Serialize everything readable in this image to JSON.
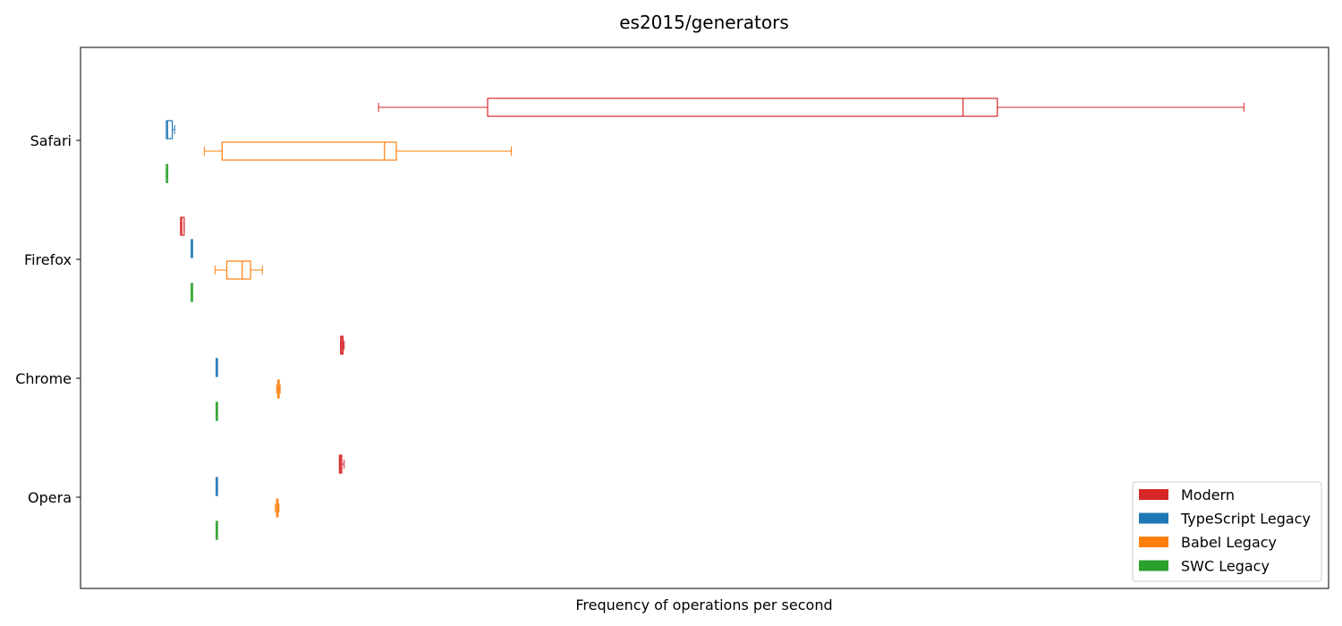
{
  "chart_data": {
    "type": "boxplot",
    "orientation": "horizontal",
    "title": "es2015/generators",
    "xlabel": "Frequency of operations per second",
    "ylabel": "",
    "x_ticks_shown": false,
    "xlim": [
      0,
      1000
    ],
    "grid": false,
    "legend_position": "bottom-right",
    "categories": [
      "Safari",
      "Firefox",
      "Chrome",
      "Opera"
    ],
    "series": [
      {
        "name": "Modern",
        "color": "#d62728",
        "boxes": [
          {
            "category": "Safari",
            "whisker_low": 225,
            "q1": 317,
            "median": 718,
            "q3": 747,
            "whisker_high": 955
          },
          {
            "category": "Firefox",
            "whisker_low": 58,
            "q1": 58,
            "median": 59,
            "q3": 61,
            "whisker_high": 61
          },
          {
            "category": "Chrome",
            "whisker_low": 193,
            "q1": 193,
            "median": 194,
            "q3": 195,
            "whisker_high": 196
          },
          {
            "category": "Opera",
            "whisker_low": 192,
            "q1": 192,
            "median": 193,
            "q3": 194,
            "whisker_high": 196
          }
        ]
      },
      {
        "name": "TypeScript Legacy",
        "color": "#1f77b4",
        "boxes": [
          {
            "category": "Safari",
            "whisker_low": 46,
            "q1": 46,
            "median": 47,
            "q3": 51,
            "whisker_high": 53
          },
          {
            "category": "Firefox",
            "whisker_low": 67,
            "q1": 67,
            "median": 67,
            "q3": 67,
            "whisker_high": 67
          },
          {
            "category": "Chrome",
            "whisker_low": 88,
            "q1": 88,
            "median": 88,
            "q3": 88,
            "whisker_high": 88
          },
          {
            "category": "Opera",
            "whisker_low": 88,
            "q1": 88,
            "median": 88,
            "q3": 88,
            "whisker_high": 88
          }
        ]
      },
      {
        "name": "Babel Legacy",
        "color": "#ff7f0e",
        "boxes": [
          {
            "category": "Safari",
            "whisker_low": 78,
            "q1": 93,
            "median": 230,
            "q3": 240,
            "whisker_high": 337
          },
          {
            "category": "Firefox",
            "whisker_low": 87,
            "q1": 97,
            "median": 110,
            "q3": 117,
            "whisker_high": 127
          },
          {
            "category": "Chrome",
            "whisker_low": 139,
            "q1": 140,
            "median": 141,
            "q3": 141,
            "whisker_high": 142
          },
          {
            "category": "Opera",
            "whisker_low": 138,
            "q1": 139,
            "median": 140,
            "q3": 140,
            "whisker_high": 141
          }
        ]
      },
      {
        "name": "SWC Legacy",
        "color": "#2ca02c",
        "boxes": [
          {
            "category": "Safari",
            "whisker_low": 46,
            "q1": 46,
            "median": 46,
            "q3": 47,
            "whisker_high": 47
          },
          {
            "category": "Firefox",
            "whisker_low": 67,
            "q1": 67,
            "median": 67,
            "q3": 67,
            "whisker_high": 67
          },
          {
            "category": "Chrome",
            "whisker_low": 88,
            "q1": 88,
            "median": 88,
            "q3": 88,
            "whisker_high": 88
          },
          {
            "category": "Opera",
            "whisker_low": 88,
            "q1": 88,
            "median": 88,
            "q3": 88,
            "whisker_high": 88
          }
        ]
      }
    ]
  }
}
